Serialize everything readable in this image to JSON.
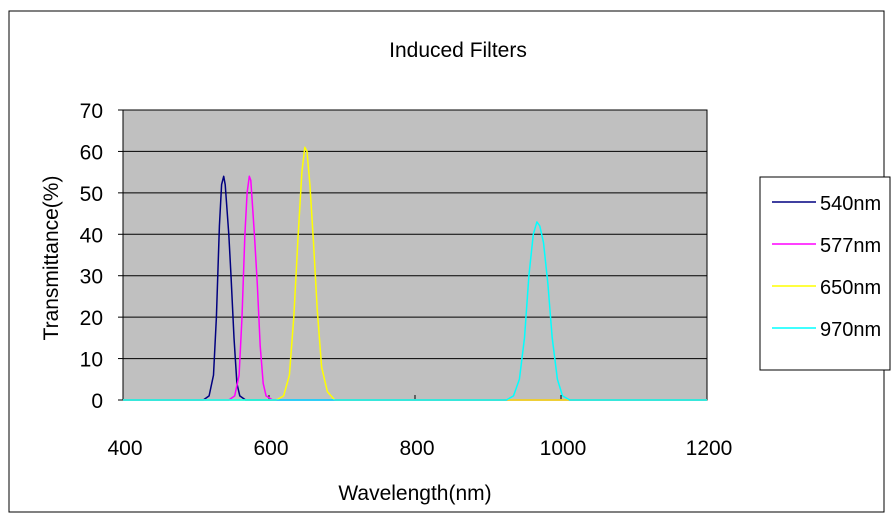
{
  "chart_data": {
    "type": "line",
    "title": "Induced Filters",
    "xlabel": "Wavelength(nm)",
    "ylabel": "Transmittance(%)",
    "xlim": [
      400,
      1200
    ],
    "ylim": [
      0,
      70
    ],
    "xticks": [
      400,
      600,
      800,
      1000,
      1200
    ],
    "yticks": [
      0,
      10,
      20,
      30,
      40,
      50,
      60,
      70
    ],
    "grid": "horizontal",
    "plot_background": "#c0c0c0",
    "legend": "right",
    "series": [
      {
        "name": "540nm",
        "color": "#000080",
        "x": [
          400,
          510,
          518,
          524,
          528,
          532,
          535,
          538,
          540,
          542,
          545,
          548,
          552,
          556,
          560,
          568,
          1200
        ],
        "y": [
          0,
          0,
          1,
          6,
          20,
          42,
          52,
          54,
          52,
          47,
          40,
          30,
          15,
          4,
          1,
          0,
          0
        ]
      },
      {
        "name": "577nm",
        "color": "#ff00ff",
        "x": [
          400,
          545,
          553,
          559,
          563,
          567,
          570,
          573,
          575,
          577,
          580,
          584,
          588,
          592,
          596,
          605,
          1200
        ],
        "y": [
          0,
          0,
          1,
          6,
          20,
          40,
          50,
          54,
          53,
          48,
          40,
          28,
          13,
          4,
          1,
          0,
          0
        ]
      },
      {
        "name": "650nm",
        "color": "#ffff00",
        "x": [
          400,
          610,
          620,
          628,
          634,
          640,
          645,
          649,
          652,
          656,
          661,
          666,
          672,
          680,
          690,
          1200
        ],
        "y": [
          0,
          0,
          1,
          6,
          20,
          40,
          55,
          61,
          60,
          52,
          38,
          22,
          8,
          2,
          0,
          0
        ]
      },
      {
        "name": "970nm",
        "color": "#00ffff",
        "x": [
          400,
          925,
          935,
          943,
          950,
          956,
          962,
          967,
          971,
          976,
          982,
          988,
          995,
          1002,
          1012,
          1200
        ],
        "y": [
          0,
          0,
          1,
          5,
          15,
          30,
          40,
          43,
          42,
          38,
          28,
          15,
          5,
          1,
          0,
          0
        ]
      }
    ]
  }
}
